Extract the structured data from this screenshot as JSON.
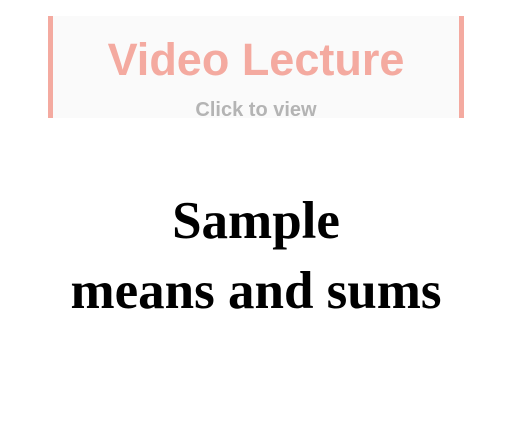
{
  "video_banner": {
    "title": "Video Lecture",
    "subtitle": "Click to view"
  },
  "lecture": {
    "title_line1": "Sample",
    "title_line2": "means and sums"
  },
  "colors": {
    "banner_accent": "#f4aaa0",
    "banner_subtitle": "#b4b4b4",
    "banner_background": "#fafafa",
    "title_text": "#000000"
  }
}
